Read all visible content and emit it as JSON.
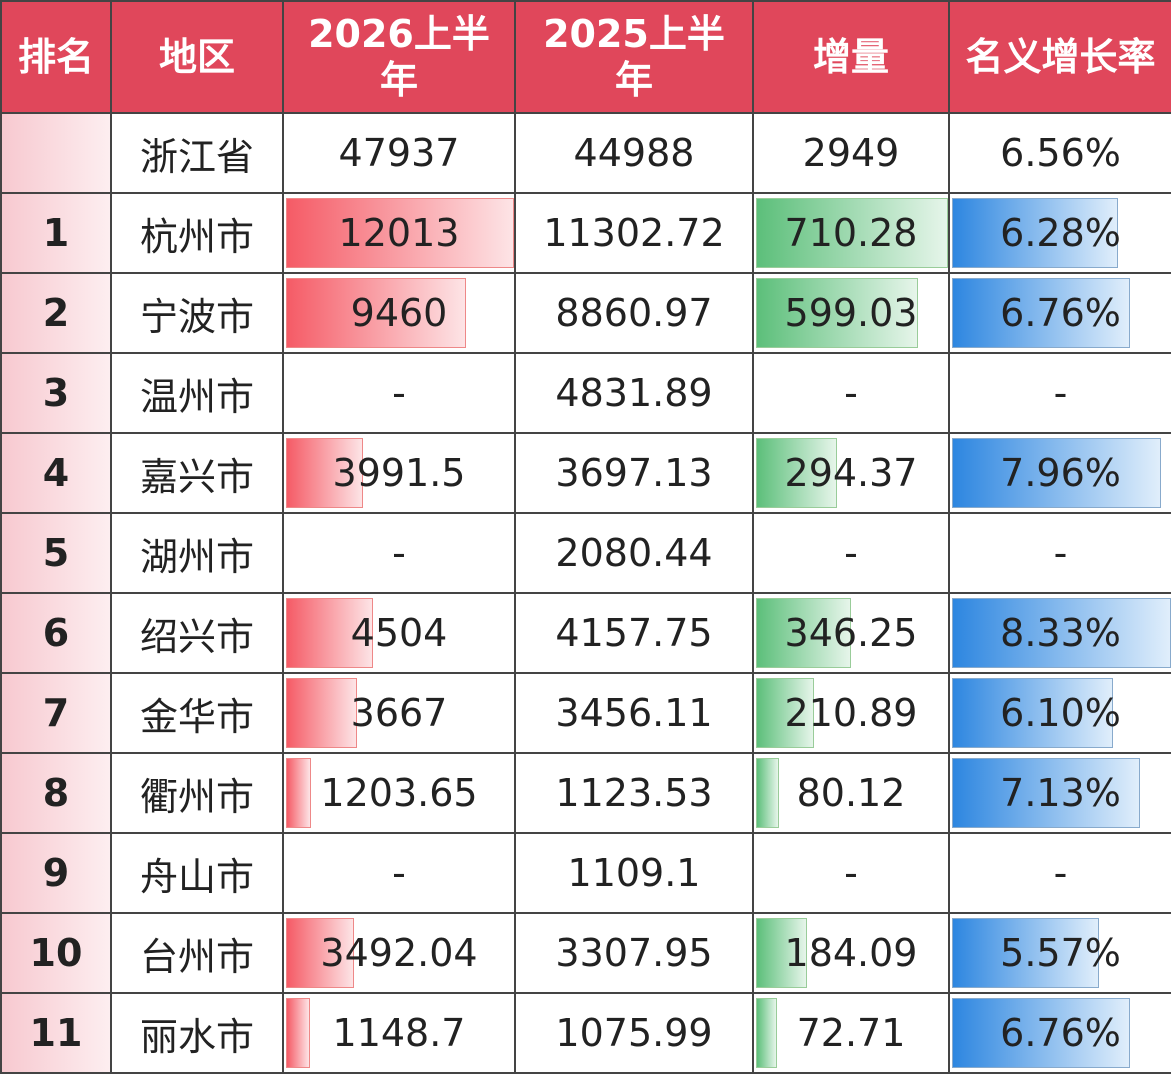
{
  "table": {
    "headers": [
      "排名",
      "地区",
      "2026上半年",
      "2025上半年",
      "增量",
      "名义增长率"
    ],
    "rows": [
      {
        "region": "浙江省",
        "cells": [
          "47937",
          "44988",
          "2949",
          "6.56%"
        ]
      },
      {
        "rank": "1",
        "region": "杭州市",
        "cells": [
          "12013",
          "11302.72",
          "710.28",
          "6.28%"
        ]
      },
      {
        "rank": "2",
        "region": "宁波市",
        "cells": [
          "9460",
          "8860.97",
          "599.03",
          "6.76%"
        ]
      },
      {
        "rank": "3",
        "region": "温州市",
        "cells": [
          "-",
          "4831.89",
          "-",
          "-"
        ]
      },
      {
        "rank": "4",
        "region": "嘉兴市",
        "cells": [
          "3991.5",
          "3697.13",
          "294.37",
          "7.96%"
        ]
      },
      {
        "rank": "5",
        "region": "湖州市",
        "cells": [
          "-",
          "2080.44",
          "-",
          "-"
        ]
      },
      {
        "rank": "6",
        "region": "绍兴市",
        "cells": [
          "4504",
          "4157.75",
          "346.25",
          "8.33%"
        ]
      },
      {
        "rank": "7",
        "region": "金华市",
        "cells": [
          "3667",
          "3456.11",
          "210.89",
          "6.10%"
        ]
      },
      {
        "rank": "8",
        "region": "衢州市",
        "cells": [
          "1203.65",
          "1123.53",
          "80.12",
          "7.13%"
        ]
      },
      {
        "rank": "9",
        "region": "舟山市",
        "cells": [
          "-",
          "1109.1",
          "-",
          "-"
        ]
      },
      {
        "rank": "10",
        "region": "台州市",
        "cells": [
          "3492.04",
          "3307.95",
          "184.09",
          "5.57%"
        ]
      },
      {
        "rank": "11",
        "region": "丽水市",
        "cells": [
          "1148.7",
          "1075.99",
          "72.71",
          "6.76%"
        ]
      }
    ]
  }
}
